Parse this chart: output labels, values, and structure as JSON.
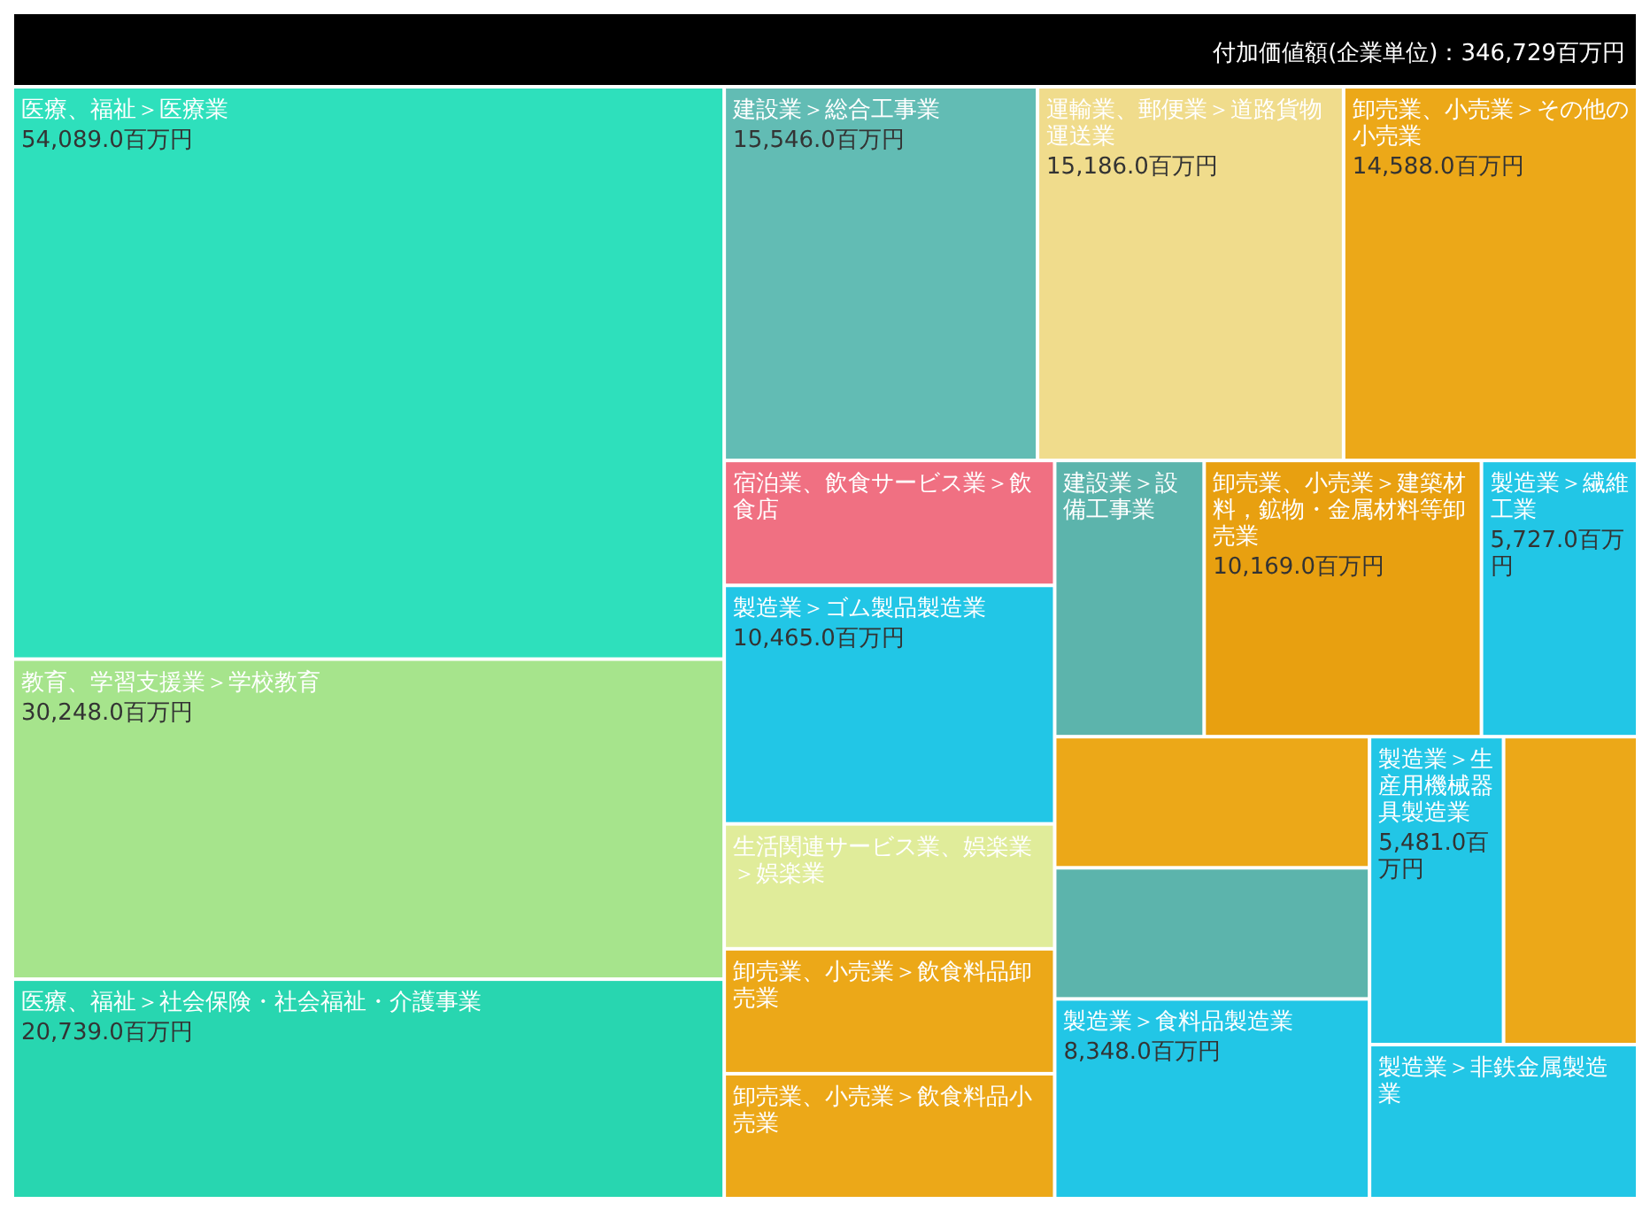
{
  "chart_data": {
    "type": "other",
    "title": "付加価値額(企業単位)：346,729百万円",
    "categories": [
      "医療、福祉＞医療業",
      "教育、学習支援業＞学校教育",
      "医療、福祉＞社会保険・社会福祉・介護事業",
      "建設業＞総合工事業",
      "運輸業、郵便業＞道路貨物運送業",
      "卸売業、小売業＞その他の小売業",
      "宿泊業、飲食サービス業＞飲食店",
      "製造業＞ゴム製品製造業",
      "生活関連サービス業、娯楽業＞娯楽業",
      "卸売業、小売業＞飲食料品卸売業",
      "卸売業、小売業＞飲食料品小売業",
      "建設業＞設備工事業",
      "卸売業、小売業＞建築材料，鉱物・金属材料等卸売業",
      "製造業＞繊維工業",
      null,
      null,
      "製造業＞食料品製造業",
      "製造業＞生産用機械器具製造業",
      null,
      "製造業＞非鉄金属製造業"
    ],
    "values": [
      54089.0,
      30248.0,
      20739.0,
      15546.0,
      15186.0,
      14588.0,
      null,
      10465.0,
      null,
      null,
      null,
      null,
      10169.0,
      5727.0,
      null,
      null,
      8348.0,
      5481.0,
      null,
      null
    ],
    "value_labels": [
      "54,089.0百万円",
      "30,248.0百万円",
      "20,739.0百万円",
      "15,546.0百万円",
      "15,186.0百万円",
      "14,588.0百万円",
      null,
      "10,465.0百万円",
      null,
      null,
      null,
      null,
      "10,169.0百万円",
      "5,727.0百万円",
      null,
      null,
      "8,348.0百万円",
      "5,481.0百万円",
      null,
      null
    ],
    "colors": [
      "#2ee0bc",
      "#a6e48c",
      "#28d6b0",
      "#62bcb4",
      "#f0dc8c",
      "#eca818",
      "#f07082",
      "#22c6e6",
      "#e0ec9a",
      "#eca818",
      "#eca818",
      "#5cb4ac",
      "#e8a010",
      "#22c6e6",
      "#eca818",
      "#5cb4ac",
      "#22c6e6",
      "#22c6e6",
      "#eca818",
      "#22c6e6"
    ]
  }
}
